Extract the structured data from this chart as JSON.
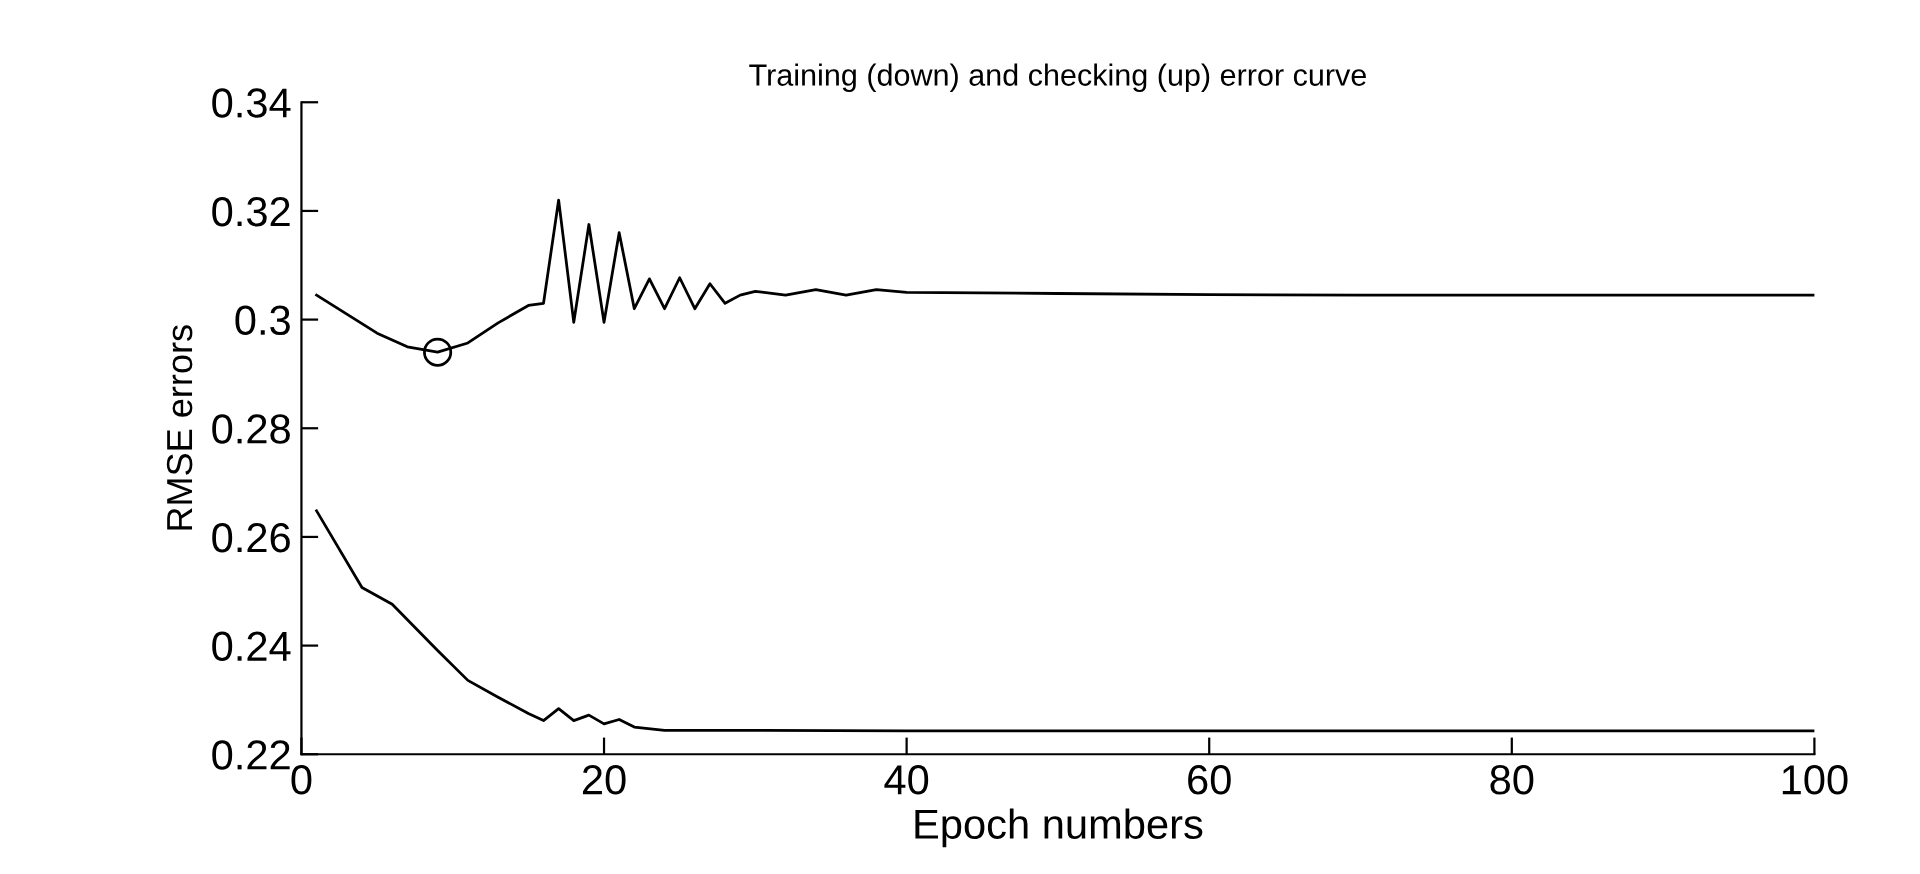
{
  "chart_data": {
    "type": "line",
    "title": "Training (down) and checking (up) error curve",
    "xlabel": "Epoch numbers",
    "ylabel": "RMSE errors",
    "xlim": [
      0,
      100
    ],
    "xticks": [
      0,
      20,
      40,
      60,
      80,
      100
    ],
    "ylim": [
      0.22,
      0.34
    ],
    "yticks": [
      0.22,
      0.24,
      0.26,
      0.28,
      0.3,
      0.32,
      0.34
    ],
    "grid": false,
    "series": [
      {
        "color": "#000000",
        "x": [
          1,
          3,
          5,
          7,
          9,
          11,
          13,
          15,
          16,
          17,
          18,
          19,
          20,
          21,
          22,
          23,
          24,
          25,
          26,
          27,
          28,
          29,
          30,
          32,
          34,
          36,
          38,
          40,
          50,
          60,
          70,
          80,
          90,
          100
        ],
        "values": [
          0.3045,
          0.301,
          0.2975,
          0.295,
          0.294,
          0.2957,
          0.2994,
          0.3026,
          0.303,
          0.322,
          0.2995,
          0.3175,
          0.2995,
          0.316,
          0.302,
          0.3075,
          0.302,
          0.3077,
          0.302,
          0.3066,
          0.303,
          0.3045,
          0.3052,
          0.3045,
          0.3055,
          0.3045,
          0.3055,
          0.305,
          0.3048,
          0.3046,
          0.3045,
          0.3045,
          0.3045,
          0.3045
        ]
      },
      {
        "color": "#000000",
        "x": [
          1,
          4,
          6,
          9,
          11,
          13,
          15,
          16,
          17,
          18,
          19,
          20,
          21,
          22,
          24,
          30,
          40,
          60,
          80,
          100
        ],
        "values": [
          0.2648,
          0.2507,
          0.2476,
          0.2391,
          0.2336,
          0.2305,
          0.2275,
          0.2262,
          0.2284,
          0.2262,
          0.2272,
          0.2256,
          0.2264,
          0.225,
          0.2244,
          0.2244,
          0.2243,
          0.2243,
          0.2243,
          0.2243
        ]
      },
      {
        "type": "scatter",
        "marker": "circle",
        "color": "#000000",
        "x": [
          9
        ],
        "values": [
          0.294
        ]
      }
    ]
  }
}
